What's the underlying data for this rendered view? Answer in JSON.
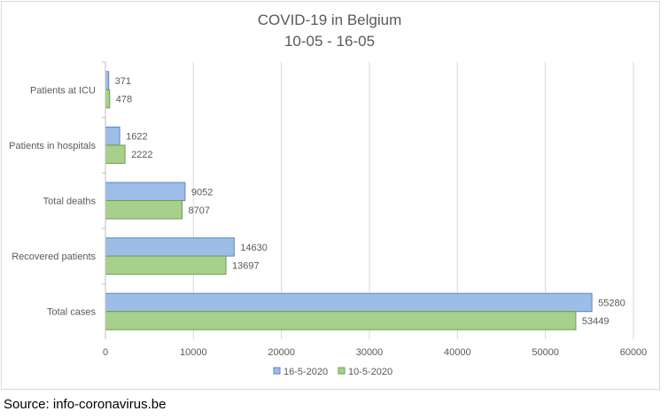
{
  "chart_data": {
    "type": "bar",
    "orientation": "horizontal",
    "title": "COVID-19 in Belgium",
    "subtitle": "10-05 - 16-05",
    "categories": [
      "Patients at ICU",
      "Patients in hospitals",
      "Total deaths",
      "Recovered patients",
      "Total cases"
    ],
    "series": [
      {
        "name": "16-5-2020",
        "values": [
          371,
          1622,
          9052,
          14630,
          55280
        ],
        "color": "#9dbde6",
        "stroke": "#5b86c6"
      },
      {
        "name": "10-5-2020",
        "values": [
          478,
          2222,
          8707,
          13697,
          53449
        ],
        "color": "#a8d08d",
        "stroke": "#6ea046"
      }
    ],
    "xlim": [
      0,
      60000
    ],
    "xticks": [
      "0",
      "10000",
      "20000",
      "30000",
      "40000",
      "50000",
      "60000"
    ],
    "grid": true,
    "legend_position": "bottom"
  },
  "footer": {
    "source": "Source: info-coronavirus.be"
  }
}
